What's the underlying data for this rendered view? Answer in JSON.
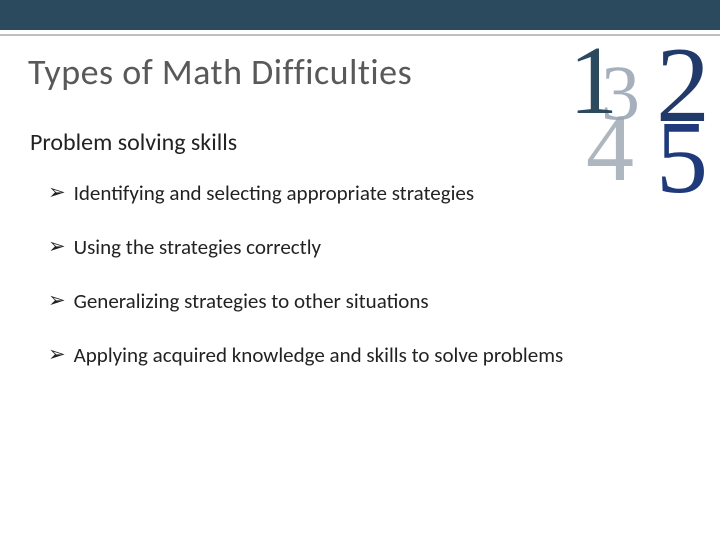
{
  "topbar_color": "#2c4a5e",
  "underline_color": "#bfbfbf",
  "title": "Types of Math Difficulties",
  "title_color": "#595959",
  "title_fontsize": 36,
  "subtitle": "Problem solving skills",
  "subtitle_fontsize": 24,
  "bullet_marker": "➢",
  "bullets": [
    "Identifying and selecting appropriate strategies",
    "Using the strategies correctly",
    "Generalizing strategies to other situations",
    "Applying acquired knowledge and skills to solve problems"
  ],
  "bullet_fontsize": 21,
  "bullet_color": "#222222",
  "decorative_numbers": {
    "n1": {
      "text": "1",
      "color": "#2c4a5e"
    },
    "n2": {
      "text": "2",
      "color": "#223a6a"
    },
    "n3": {
      "text": "3",
      "color": "#8090a0"
    },
    "n4": {
      "text": "4",
      "color": "#9aa5b1"
    },
    "n5": {
      "text": "5",
      "color": "#1f3a7a"
    }
  },
  "background_color": "#ffffff"
}
